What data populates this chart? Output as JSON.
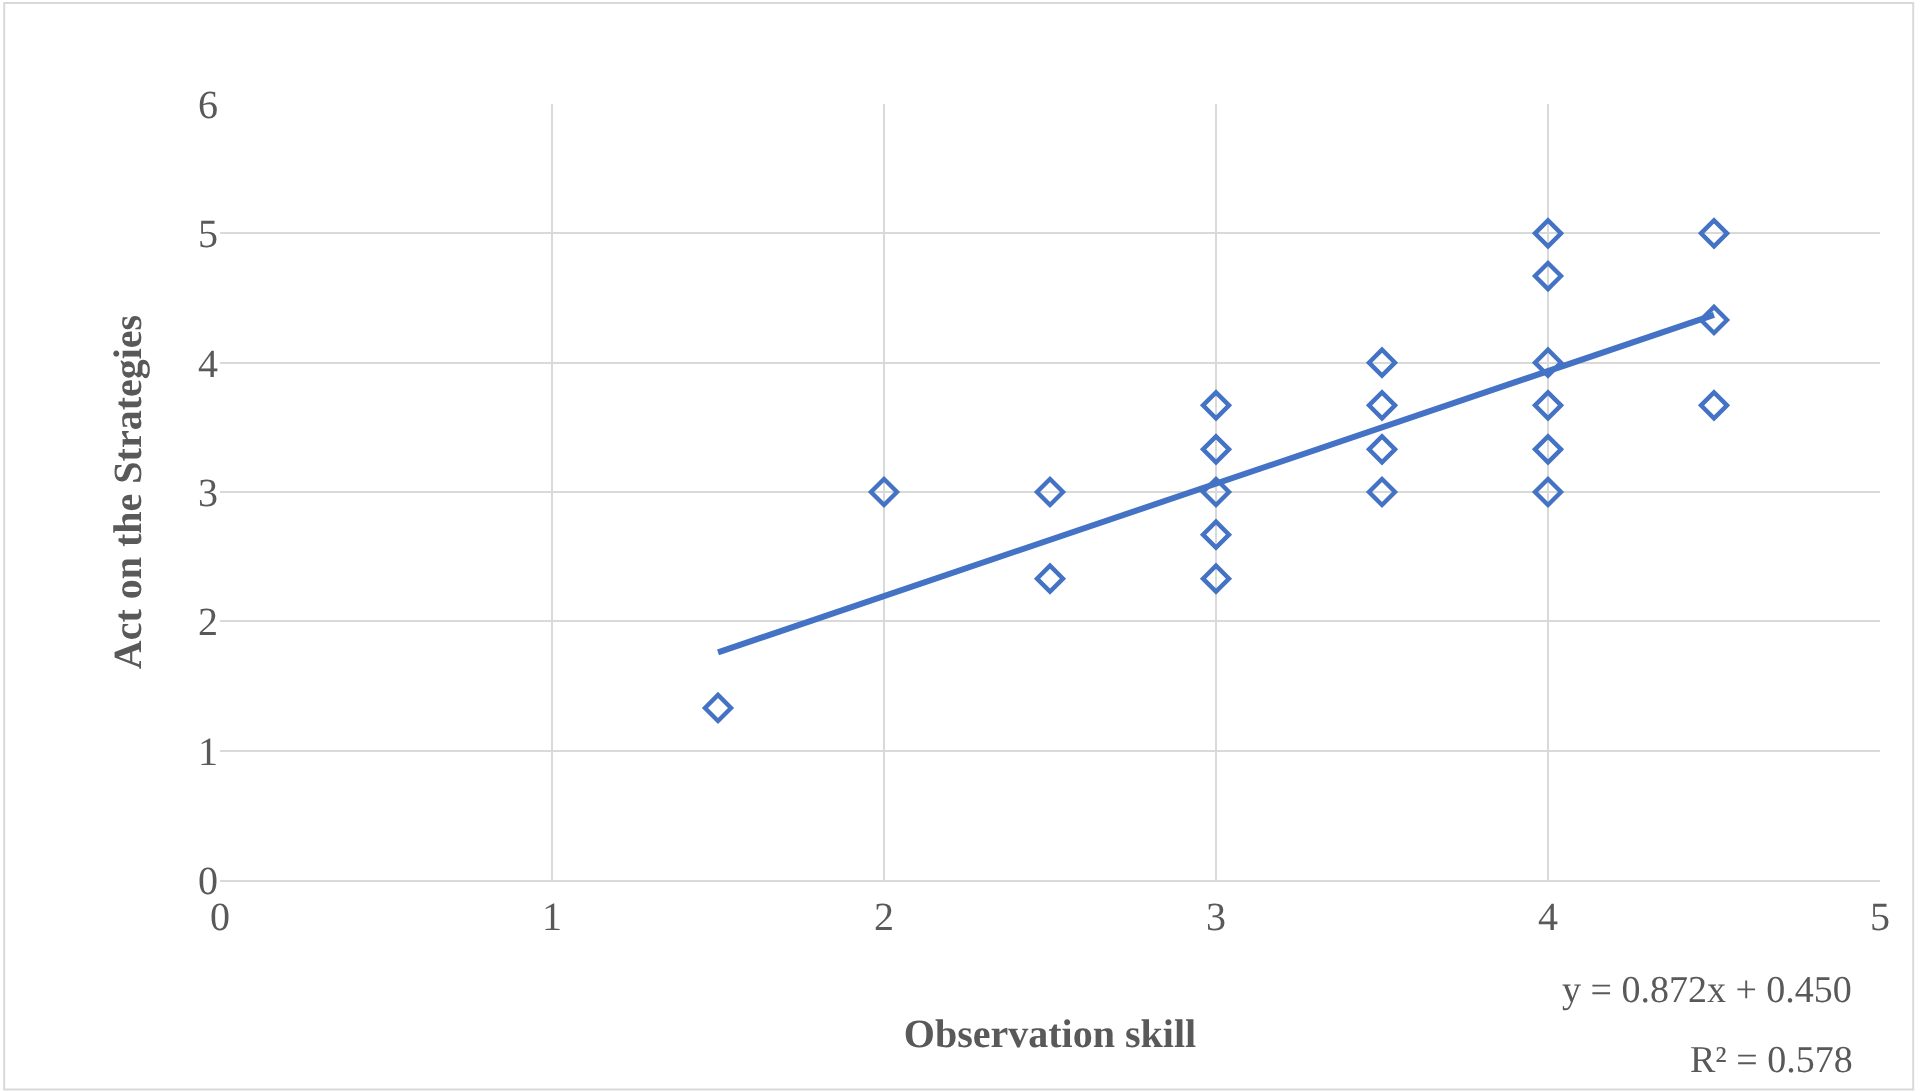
{
  "chart_data": {
    "type": "scatter",
    "xlabel": "Observation skill",
    "ylabel": "Act on the Strategies",
    "series": [
      {
        "color": "#4472c4",
        "marker": "diamond",
        "x": [
          1.5,
          2,
          2.5,
          2.5,
          3,
          3,
          3,
          3,
          3,
          3.5,
          3.5,
          3.5,
          3.5,
          4,
          4,
          4,
          4,
          4,
          4,
          4.5,
          4.5,
          4.5
        ],
        "values": [
          1.33,
          3,
          3,
          2.33,
          3.67,
          3.33,
          3,
          2.67,
          2.33,
          4,
          3.67,
          3.33,
          3,
          5,
          4.67,
          4,
          3.67,
          3.33,
          3,
          5,
          4.33,
          3.67
        ]
      },
      {
        "type": "line",
        "color": "#4472c4",
        "marker": "none",
        "x": [
          1.5,
          4.5
        ],
        "values": [
          1.76,
          4.37
        ]
      }
    ],
    "annotations": [
      "y = 0.872x + 0.450",
      "R² = 0.578"
    ],
    "xlim": [
      0,
      5
    ],
    "xticks": [
      0,
      1,
      2,
      3,
      4,
      5
    ],
    "ylim": [
      0,
      6
    ],
    "yticks": [
      0,
      1,
      2,
      3,
      4,
      5,
      6
    ],
    "grid": true
  }
}
